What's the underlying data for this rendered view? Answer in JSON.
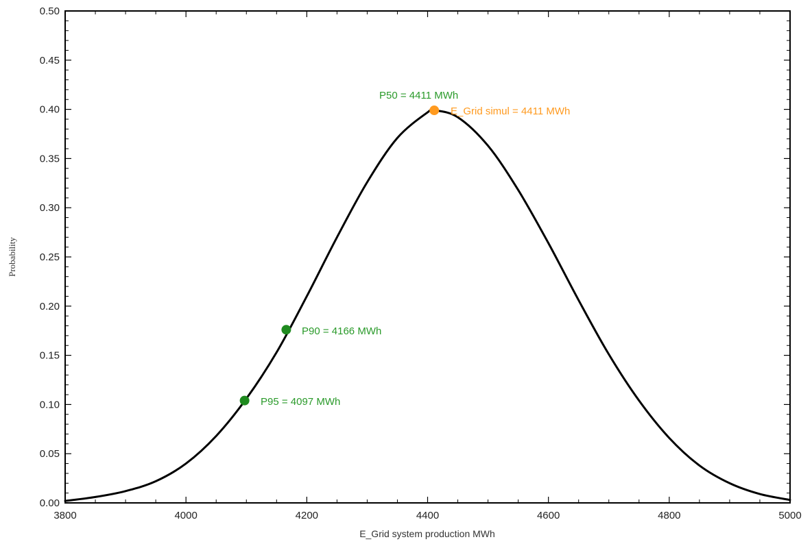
{
  "chart_data": {
    "type": "line",
    "title": "",
    "xlabel": "E_Grid system production MWh",
    "ylabel": "Probability",
    "xlim": [
      3800,
      5000
    ],
    "ylim": [
      0.0,
      0.5
    ],
    "x_ticks": [
      "3800",
      "4000",
      "4200",
      "4400",
      "4600",
      "4800",
      "5000"
    ],
    "y_ticks": [
      "0.00",
      "0.05",
      "0.10",
      "0.15",
      "0.20",
      "0.25",
      "0.30",
      "0.35",
      "0.40",
      "0.45",
      "0.50"
    ],
    "grid": false,
    "line_color": "#000000",
    "series": [
      {
        "x": [
          3800,
          3850,
          3900,
          3950,
          4000,
          4050,
          4100,
          4150,
          4200,
          4250,
          4300,
          4350,
          4400,
          4411,
          4450,
          4500,
          4550,
          4600,
          4650,
          4700,
          4750,
          4800,
          4850,
          4900,
          4950,
          5000
        ],
        "y": [
          0.002,
          0.006,
          0.012,
          0.022,
          0.04,
          0.068,
          0.106,
          0.153,
          0.21,
          0.27,
          0.326,
          0.371,
          0.397,
          0.399,
          0.392,
          0.363,
          0.318,
          0.264,
          0.206,
          0.151,
          0.104,
          0.066,
          0.038,
          0.02,
          0.009,
          0.003
        ]
      }
    ],
    "markers": [
      {
        "label": "P50 = 4411 MWh",
        "x": 4411,
        "y": 0.399,
        "color": "#ff9a1f"
      },
      {
        "label": "P90 = 4166 MWh",
        "x": 4166,
        "y": 0.176,
        "color": "#1f8a1f"
      },
      {
        "label": "P95 = 4097 MWh",
        "x": 4097,
        "y": 0.104,
        "color": "#1f8a1f"
      }
    ],
    "annotations": [
      {
        "text": "P50 = 4411 MWh",
        "color": "#2a9a2a"
      },
      {
        "text": "E_Grid simul = 4411 MWh",
        "color": "#ff9a1f"
      },
      {
        "text": "P90 = 4166 MWh",
        "color": "#2a9a2a"
      },
      {
        "text": "P95 = 4097 MWh",
        "color": "#2a9a2a"
      }
    ]
  }
}
